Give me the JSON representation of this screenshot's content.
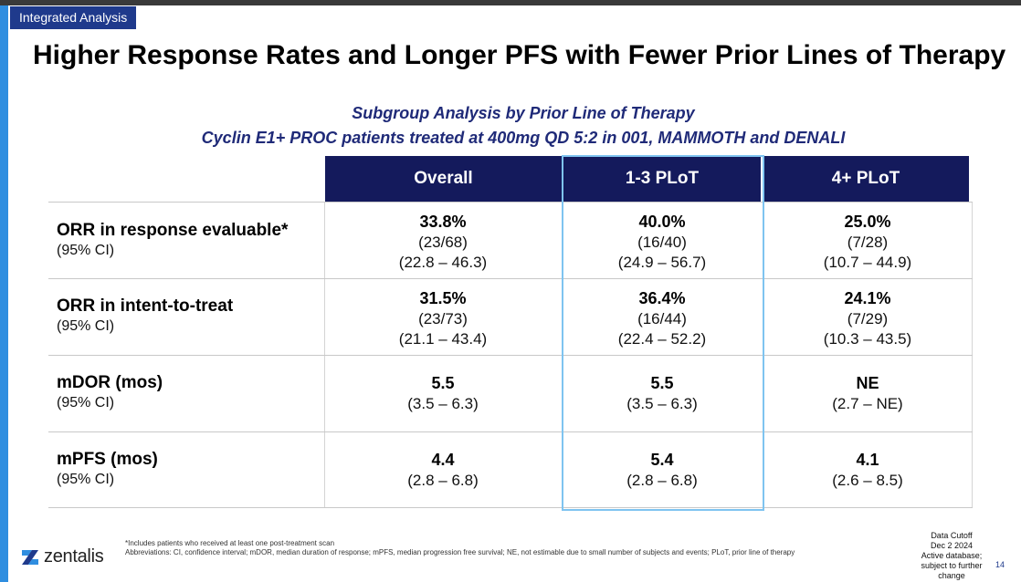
{
  "tag": "Integrated Analysis",
  "title": "Higher Response Rates and Longer PFS with Fewer Prior Lines of Therapy",
  "subtitle_line1": "Subgroup Analysis by Prior Line of Therapy",
  "subtitle_line2": "Cyclin E1+ PROC patients treated at 400mg QD 5:2 in 001, MAMMOTH and DENALI",
  "columns": [
    "Overall",
    "1-3 PLoT",
    "4+ PLoT"
  ],
  "rows": [
    {
      "label": "ORR in response evaluable*",
      "ci_label": "(95% CI)",
      "cells": [
        {
          "value": "33.8%",
          "n": "(23/68)",
          "ci": "(22.8 – 46.3)"
        },
        {
          "value": "40.0%",
          "n": "(16/40)",
          "ci": "(24.9 – 56.7)"
        },
        {
          "value": "25.0%",
          "n": "(7/28)",
          "ci": "(10.7 – 44.9)"
        }
      ]
    },
    {
      "label": "ORR in intent-to-treat",
      "ci_label": "(95% CI)",
      "cells": [
        {
          "value": "31.5%",
          "n": "(23/73)",
          "ci": "(21.1 – 43.4)"
        },
        {
          "value": "36.4%",
          "n": "(16/44)",
          "ci": "(22.4 – 52.2)"
        },
        {
          "value": "24.1%",
          "n": "(7/29)",
          "ci": "(10.3 – 43.5)"
        }
      ]
    },
    {
      "label": "mDOR (mos)",
      "ci_label": "(95% CI)",
      "cells": [
        {
          "value": "5.5",
          "ci": "(3.5 – 6.3)"
        },
        {
          "value": "5.5",
          "ci": "(3.5 – 6.3)"
        },
        {
          "value": "NE",
          "ci": "(2.7 – NE)"
        }
      ]
    },
    {
      "label": "mPFS (mos)",
      "ci_label": "(95% CI)",
      "cells": [
        {
          "value": "4.4",
          "ci": "(2.8 – 6.8)"
        },
        {
          "value": "5.4",
          "ci": "(2.8 – 6.8)"
        },
        {
          "value": "4.1",
          "ci": "(2.6 – 8.5)"
        }
      ]
    }
  ],
  "footnote1": "*Includes patients who received at least one post-treatment scan",
  "footnote2": "Abbreviations: CI, confidence interval; mDOR, median duration of response; mPFS, median progression free survival; NE, not estimable due to small number of subjects and events; PLoT, prior line of therapy",
  "logo_text": "zentalis",
  "data_cutoff": [
    "Data Cutoff",
    "Dec 2 2024",
    "Active database;",
    "subject to further",
    "change"
  ],
  "page_number": "14",
  "colors": {
    "header_bg": "#141a5c",
    "subtitle": "#1f2a78",
    "highlight_border": "#7fc4f0",
    "accent_bar": "#2f8ee0"
  },
  "icons": {
    "logo": "zentalis-logo-icon"
  }
}
